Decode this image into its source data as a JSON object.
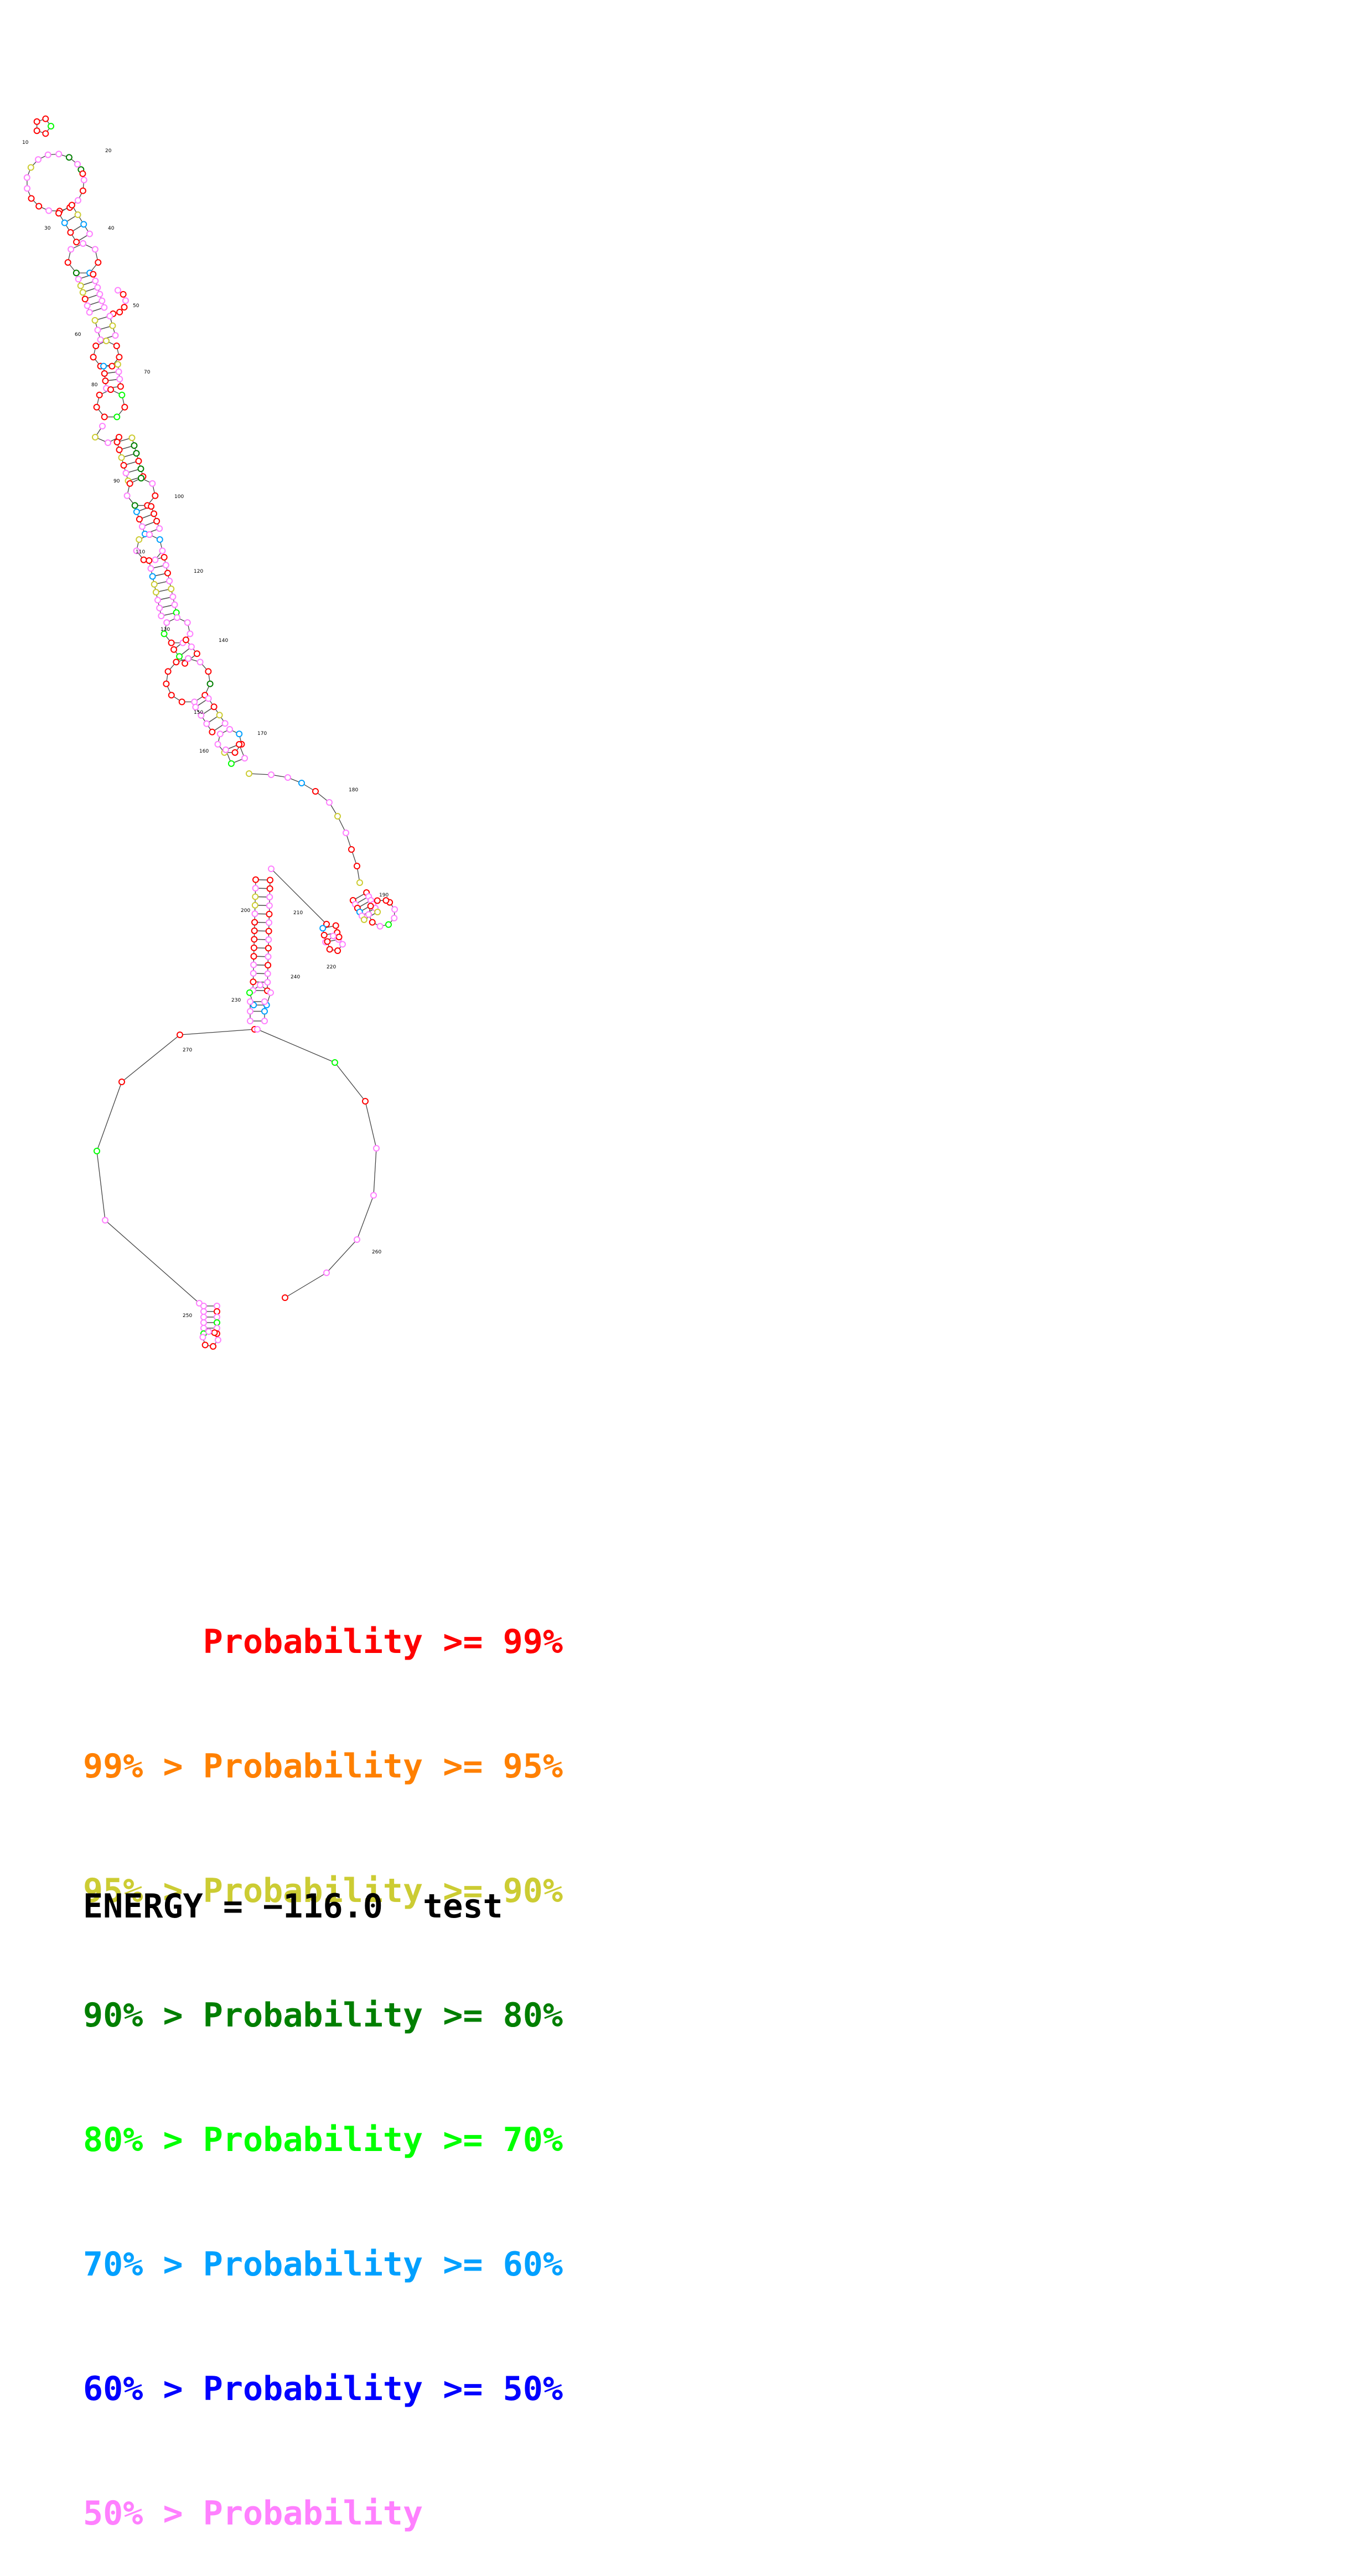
{
  "legend": [
    {
      "prefix": "",
      "label": "Probability",
      "suffix": ">= 99%",
      "color": "#ff0000"
    },
    {
      "prefix": "99% >",
      "label": "Probability",
      "suffix": ">= 95%",
      "color": "#ff8000"
    },
    {
      "prefix": "95% >",
      "label": "Probability",
      "suffix": ">= 90%",
      "color": "#cccc33"
    },
    {
      "prefix": "90% >",
      "label": "Probability",
      "suffix": ">= 80%",
      "color": "#007f00"
    },
    {
      "prefix": "80% >",
      "label": "Probability",
      "suffix": ">= 70%",
      "color": "#00ff00"
    },
    {
      "prefix": "70% >",
      "label": "Probability",
      "suffix": ">= 60%",
      "color": "#00a0ff"
    },
    {
      "prefix": "60% >",
      "label": "Probability",
      "suffix": ">= 50%",
      "color": "#0000ff"
    },
    {
      "prefix": "50% >",
      "label": "Probability",
      "suffix": "",
      "color": "#ff80ff"
    }
  ],
  "energy": {
    "label": "ENERGY =",
    "value": "−116.0",
    "name": "test"
  },
  "position_labels": [
    "10",
    "20",
    "30",
    "40",
    "50",
    "60",
    "70",
    "80",
    "90",
    "100",
    "110",
    "120",
    "130",
    "140",
    "150",
    "160",
    "170",
    "180",
    "190",
    "200",
    "210",
    "220",
    "230",
    "240",
    "250",
    "260",
    "270"
  ]
}
